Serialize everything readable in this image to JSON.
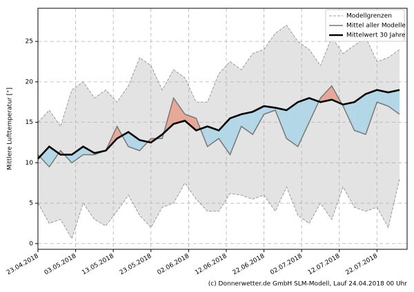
{
  "chart_data": {
    "type": "line",
    "y_label": "Mittlere Lufttemperatur [°]",
    "footer": "(c) Donnerwetter.de GmbH SLM-Modell, Lauf 24.04.2018 00 Uhr",
    "x": [
      "23.04.2018",
      "26.04.2018",
      "29.04.2018",
      "02.05.2018",
      "05.05.2018",
      "08.05.2018",
      "11.05.2018",
      "14.05.2018",
      "17.05.2018",
      "20.05.2018",
      "23.05.2018",
      "26.05.2018",
      "29.05.2018",
      "01.06.2018",
      "04.06.2018",
      "07.06.2018",
      "10.06.2018",
      "13.06.2018",
      "16.06.2018",
      "19.06.2018",
      "22.06.2018",
      "25.06.2018",
      "28.06.2018",
      "01.07.2018",
      "04.07.2018",
      "07.07.2018",
      "10.07.2018",
      "13.07.2018",
      "16.07.2018",
      "19.07.2018",
      "22.07.2018",
      "25.07.2018",
      "28.07.2018"
    ],
    "series": [
      {
        "name": "Modellgrenzen",
        "color": "#999999",
        "high": [
          15,
          16.5,
          14.5,
          19,
          20,
          18,
          19,
          17.5,
          19.5,
          23,
          22,
          19,
          21.5,
          20.5,
          17.5,
          17.5,
          21,
          22.5,
          21.5,
          23.5,
          24,
          26,
          27,
          25,
          24,
          22,
          25.5,
          23.5,
          24.5,
          25.5,
          22.5,
          23,
          24
        ],
        "low": [
          5,
          2.5,
          3,
          0.6,
          5,
          3,
          2.2,
          4,
          6,
          3.5,
          2,
          4.5,
          5,
          7.5,
          5.5,
          4,
          4,
          6.2,
          6,
          5.5,
          6,
          4,
          7,
          3.5,
          2.5,
          5,
          3,
          7,
          4.5,
          4,
          4.5,
          2,
          8
        ]
      },
      {
        "name": "Mittel aller Modelle",
        "color": "#777777",
        "values": [
          11,
          9.5,
          11.5,
          10,
          11,
          11,
          11.5,
          14.5,
          12,
          11.5,
          13,
          13,
          18,
          16,
          15.5,
          12,
          13,
          11,
          14.5,
          13.5,
          16,
          16.5,
          13,
          12,
          15,
          18,
          19.5,
          17,
          14,
          13.5,
          17.5,
          17,
          16
        ]
      },
      {
        "name": "Mittelwert 30 Jahre",
        "color": "#000000",
        "values": [
          10.5,
          12,
          11,
          11,
          12,
          11.2,
          11.5,
          13,
          13.8,
          12.8,
          12.5,
          13.5,
          14.8,
          15.2,
          14,
          14.5,
          14,
          15.5,
          16,
          16.3,
          17,
          16.8,
          16.5,
          17.5,
          18,
          17.5,
          17.8,
          17.2,
          17.5,
          18.5,
          19,
          18.7,
          19
        ]
      }
    ],
    "above_color": "#e8a898",
    "below_color": "#b4d7e8",
    "band_color": "#e3e3e3",
    "xlim": [
      "23.04.2018",
      "30.07.2018"
    ],
    "xticks": [
      "23.04.2018",
      "03.05.2018",
      "13.05.2018",
      "23.05.2018",
      "02.06.2018",
      "12.06.2018",
      "22.06.2018",
      "02.07.2018",
      "12.07.2018",
      "22.07.2018"
    ],
    "ylim": [
      -0.7,
      29.1
    ],
    "yticks": [
      0,
      5,
      10,
      15,
      20,
      25
    ],
    "grid": true,
    "legend": "upper right"
  }
}
